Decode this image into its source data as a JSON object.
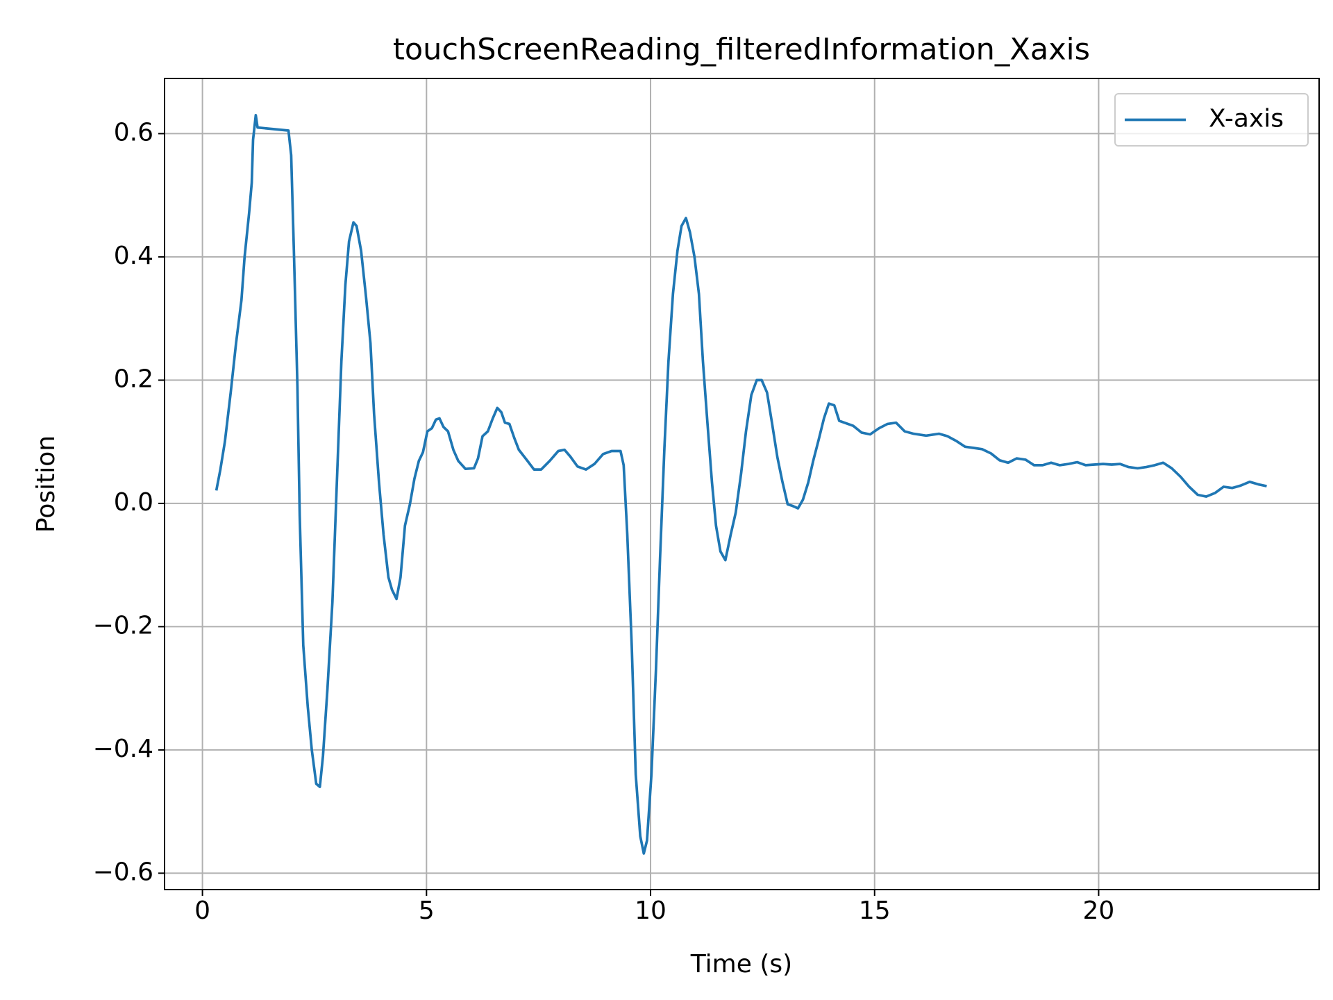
{
  "chart_data": {
    "type": "line",
    "title": "touchScreenReading_filteredInformation_Xaxis",
    "x_label": "Time (s)",
    "y_label": "Position",
    "xlim": [
      -0.846,
      24.92
    ],
    "ylim": [
      -0.6266,
      0.6895
    ],
    "xticks": [
      0,
      5,
      10,
      15,
      20
    ],
    "yticks": [
      {
        "value": -0.6,
        "label": "−0.6"
      },
      {
        "value": -0.4,
        "label": "−0.4"
      },
      {
        "value": -0.2,
        "label": "−0.2"
      },
      {
        "value": 0,
        "label": "0.0"
      },
      0.2,
      0.4,
      0.6
    ],
    "grid": true,
    "legend": "upper right",
    "series": [
      {
        "name": "X-axis",
        "color": "#1f77b4",
        "x": [
          0.31,
          0.4,
          0.5,
          0.63,
          0.75,
          0.87,
          0.94,
          1.04,
          1.1,
          1.13,
          1.19,
          1.23,
          1.92,
          1.98,
          2.04,
          2.12,
          2.17,
          2.25,
          2.35,
          2.44,
          2.54,
          2.62,
          2.69,
          2.79,
          2.9,
          3.0,
          3.1,
          3.19,
          3.27,
          3.37,
          3.44,
          3.54,
          3.65,
          3.75,
          3.83,
          3.94,
          4.04,
          4.15,
          4.23,
          4.33,
          4.42,
          4.52,
          4.63,
          4.73,
          4.83,
          4.92,
          5.02,
          5.12,
          5.21,
          5.29,
          5.38,
          5.48,
          5.6,
          5.71,
          5.87,
          6.06,
          6.15,
          6.25,
          6.37,
          6.48,
          6.58,
          6.67,
          6.75,
          6.85,
          6.96,
          7.06,
          7.21,
          7.4,
          7.56,
          7.75,
          7.94,
          8.08,
          8.21,
          8.37,
          8.56,
          8.75,
          8.94,
          9.13,
          9.33,
          9.4,
          9.48,
          9.58,
          9.67,
          9.77,
          9.85,
          9.92,
          10.02,
          10.12,
          10.21,
          10.31,
          10.4,
          10.5,
          10.6,
          10.69,
          10.79,
          10.88,
          10.98,
          11.08,
          11.17,
          11.27,
          11.37,
          11.46,
          11.56,
          11.67,
          11.79,
          11.9,
          12.02,
          12.13,
          12.25,
          12.37,
          12.48,
          12.6,
          12.71,
          12.83,
          12.94,
          13.06,
          13.17,
          13.29,
          13.4,
          13.52,
          13.63,
          13.75,
          13.87,
          13.98,
          14.1,
          14.21,
          14.33,
          14.52,
          14.71,
          14.9,
          15.1,
          15.29,
          15.48,
          15.67,
          15.87,
          16.15,
          16.44,
          16.63,
          16.83,
          17.02,
          17.21,
          17.4,
          17.6,
          17.79,
          17.98,
          18.17,
          18.37,
          18.56,
          18.75,
          18.94,
          19.13,
          19.33,
          19.52,
          19.71,
          19.9,
          20.1,
          20.29,
          20.48,
          20.67,
          20.87,
          21.06,
          21.25,
          21.44,
          21.63,
          21.83,
          22.02,
          22.21,
          22.4,
          22.6,
          22.79,
          22.98,
          23.17,
          23.37,
          23.56,
          23.75
        ],
        "values": [
          0.021,
          0.055,
          0.1,
          0.18,
          0.26,
          0.33,
          0.4,
          0.47,
          0.52,
          0.59,
          0.63,
          0.61,
          0.605,
          0.565,
          0.41,
          0.19,
          -0.02,
          -0.23,
          -0.33,
          -0.4,
          -0.455,
          -0.46,
          -0.41,
          -0.3,
          -0.16,
          0.034,
          0.23,
          0.355,
          0.425,
          0.456,
          0.45,
          0.41,
          0.335,
          0.26,
          0.145,
          0.034,
          -0.05,
          -0.12,
          -0.14,
          -0.155,
          -0.12,
          -0.036,
          -0.0014,
          0.04,
          0.069,
          0.083,
          0.117,
          0.122,
          0.136,
          0.138,
          0.124,
          0.117,
          0.087,
          0.069,
          0.056,
          0.057,
          0.073,
          0.109,
          0.117,
          0.138,
          0.155,
          0.148,
          0.131,
          0.129,
          0.106,
          0.087,
          0.073,
          0.055,
          0.055,
          0.069,
          0.085,
          0.087,
          0.076,
          0.06,
          0.055,
          0.064,
          0.08,
          0.085,
          0.085,
          0.062,
          -0.05,
          -0.23,
          -0.44,
          -0.54,
          -0.568,
          -0.547,
          -0.44,
          -0.27,
          -0.092,
          0.09,
          0.23,
          0.34,
          0.41,
          0.45,
          0.463,
          0.44,
          0.4,
          0.34,
          0.23,
          0.13,
          0.034,
          -0.036,
          -0.078,
          -0.092,
          -0.05,
          -0.015,
          0.048,
          0.117,
          0.176,
          0.2,
          0.2,
          0.18,
          0.131,
          0.075,
          0.036,
          -0.0014,
          -0.004,
          -0.008,
          0.006,
          0.034,
          0.069,
          0.103,
          0.138,
          0.162,
          0.159,
          0.134,
          0.131,
          0.126,
          0.115,
          0.112,
          0.122,
          0.129,
          0.131,
          0.117,
          0.113,
          0.11,
          0.113,
          0.109,
          0.101,
          0.092,
          0.09,
          0.088,
          0.081,
          0.07,
          0.066,
          0.073,
          0.071,
          0.062,
          0.062,
          0.066,
          0.062,
          0.064,
          0.067,
          0.062,
          0.063,
          0.064,
          0.063,
          0.064,
          0.059,
          0.057,
          0.059,
          0.062,
          0.066,
          0.057,
          0.043,
          0.027,
          0.014,
          0.011,
          0.017,
          0.027,
          0.025,
          0.029,
          0.035,
          0.031,
          0.028
        ]
      }
    ]
  }
}
